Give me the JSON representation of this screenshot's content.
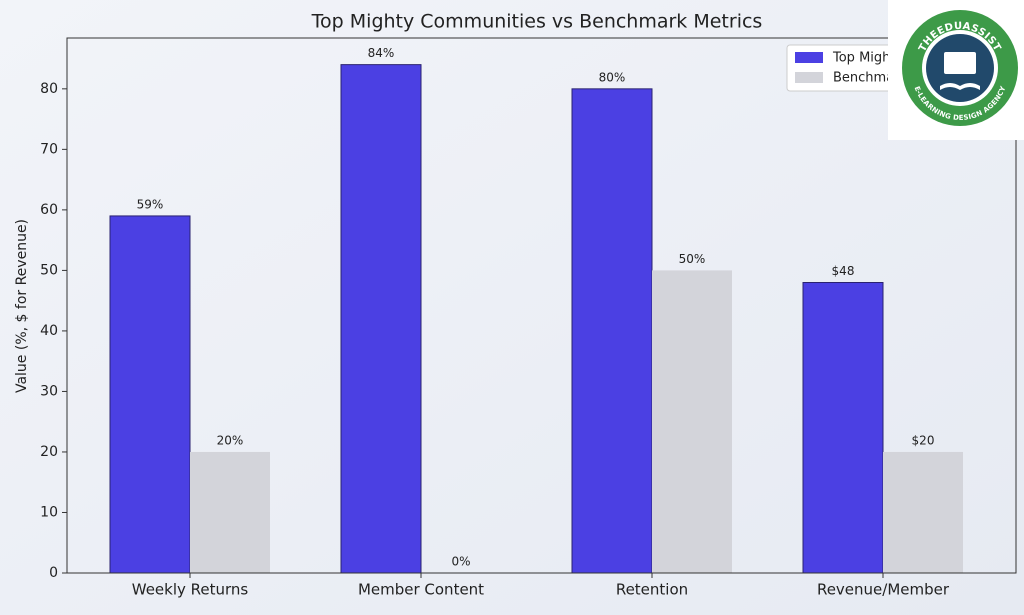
{
  "chart_data": {
    "type": "bar",
    "title": "Top Mighty Communities vs Benchmark Metrics",
    "y_label": "Value (%, $ for Revenue)",
    "categories": [
      "Weekly Returns",
      "Member Content",
      "Retention",
      "Revenue/Member"
    ],
    "series": [
      {
        "name": "Top Mighty Communities",
        "color": "#4b40e3",
        "values": [
          59,
          84,
          80,
          48
        ],
        "value_labels": [
          "59%",
          "84%",
          "80%",
          "$48"
        ],
        "label_color": "#5a50c8"
      },
      {
        "name": "Benchmark",
        "color": "#d3d4da",
        "values": [
          20,
          0,
          50,
          20
        ],
        "value_labels": [
          "20%",
          "0%",
          "50%",
          "$20"
        ],
        "label_color": "#8a8a90"
      }
    ],
    "ylim": [
      0,
      88.4
    ],
    "yticks": [
      0,
      10,
      20,
      30,
      40,
      50,
      60,
      70,
      80
    ],
    "legend": "upper right"
  },
  "logo": {
    "top_text": "THEEDUASSIST",
    "bottom_text": "E-LEARNING DESIGN AGENCY"
  }
}
